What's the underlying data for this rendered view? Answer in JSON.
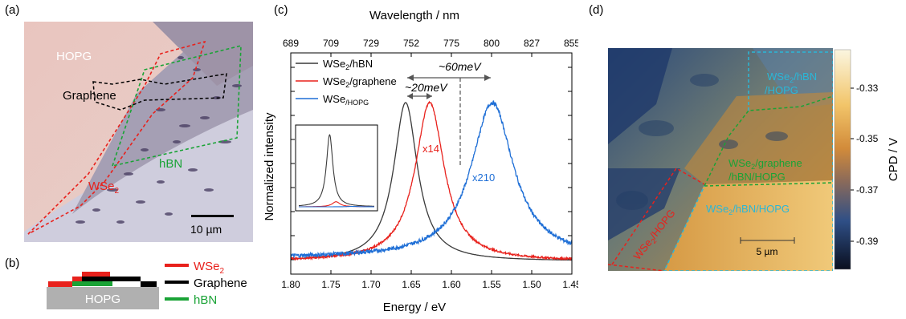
{
  "panels": {
    "a": {
      "label": "(a)",
      "labels": {
        "hopg": "HOPG",
        "graphene": "Graphene",
        "hbn": "hBN",
        "wse2": "WSe",
        "wse2_sub": "2"
      },
      "scalebar": "10 µm",
      "colors": {
        "wse2": "#e8211c",
        "graphene": "#000000",
        "hbn": "#1aa336",
        "substrate": "#e9c7c3"
      }
    },
    "b": {
      "label": "(b)",
      "substrate": "HOPG",
      "legend": [
        {
          "text": "WSe",
          "sub": "2",
          "color": "#e8211c"
        },
        {
          "text": "Graphene",
          "sub": "",
          "color": "#000000"
        },
        {
          "text": "hBN",
          "sub": "",
          "color": "#1aa336"
        }
      ]
    },
    "c": {
      "label": "(c)"
    },
    "d": {
      "label": "(d)",
      "regions": {
        "hopg_top": "WSe2/hBN/HOPG",
        "graphene": "WSe2/graphene/hBN/HOPG",
        "hbn_mid": "WSe2/hBN/HOPG",
        "hopg_left": "WSe2/HOPG"
      },
      "region_lines": {
        "r1": [
          "WSe",
          "2",
          "/hBN"
        ],
        "r1b": "/HOPG",
        "r2": [
          "WSe",
          "2",
          "/graphene"
        ],
        "r2b": "/hBN/HOPG",
        "r3": [
          "WSe",
          "2",
          "/hBN/HOPG"
        ],
        "r4": [
          "WSe",
          "2",
          "/HOPG"
        ]
      },
      "scalebar": "5 µm",
      "colorbar": {
        "label": "CPD / V",
        "ticks": [
          "-0.33",
          "-0.35",
          "-0.37",
          "-0.39"
        ]
      }
    }
  },
  "chart_data": {
    "type": "line",
    "xlabel": "Energy / eV",
    "x2label": "Wavelength / nm",
    "ylabel": "Normalized intensity",
    "xlim": [
      1.8,
      1.45
    ],
    "x_ticks": [
      "1.80",
      "1.75",
      "1.70",
      "1.65",
      "1.60",
      "1.55",
      "1.50",
      "1.45"
    ],
    "x2_ticks": [
      "689",
      "709",
      "729",
      "752",
      "775",
      "800",
      "827",
      "855"
    ],
    "series": [
      {
        "name": "WSe2/hBN",
        "color": "#3a3a3a",
        "peak_eV": 1.657,
        "hwhm": 0.018,
        "baseline": 0.02,
        "noise": 0.0
      },
      {
        "name": "WSe2/graphene",
        "color": "#e8211c",
        "peak_eV": 1.627,
        "hwhm": 0.022,
        "baseline": 0.02,
        "noise": 0.006
      },
      {
        "name": "WSe2/HOPG",
        "color": "#1f6fd6",
        "peak_eV": 1.549,
        "hwhm": 0.032,
        "baseline": 0.04,
        "noise": 0.012
      }
    ],
    "legend": [
      {
        "text": "WSe",
        "sub": "2",
        "rest": "/hBN"
      },
      {
        "text": "WSe",
        "sub": "2",
        "rest": "/graphene"
      },
      {
        "text": "WSe",
        "sub": "2",
        "rest": "/HOPG"
      }
    ],
    "annotations": {
      "shift1": "~60meV",
      "shift2": "~20meV",
      "x14": "x14",
      "x210": "x210"
    },
    "inset": {
      "series": [
        "WSe2/hBN",
        "WSe2/graphene",
        "WSe2/HOPG"
      ],
      "rel_heights": [
        1.0,
        0.07,
        0.005
      ]
    }
  }
}
